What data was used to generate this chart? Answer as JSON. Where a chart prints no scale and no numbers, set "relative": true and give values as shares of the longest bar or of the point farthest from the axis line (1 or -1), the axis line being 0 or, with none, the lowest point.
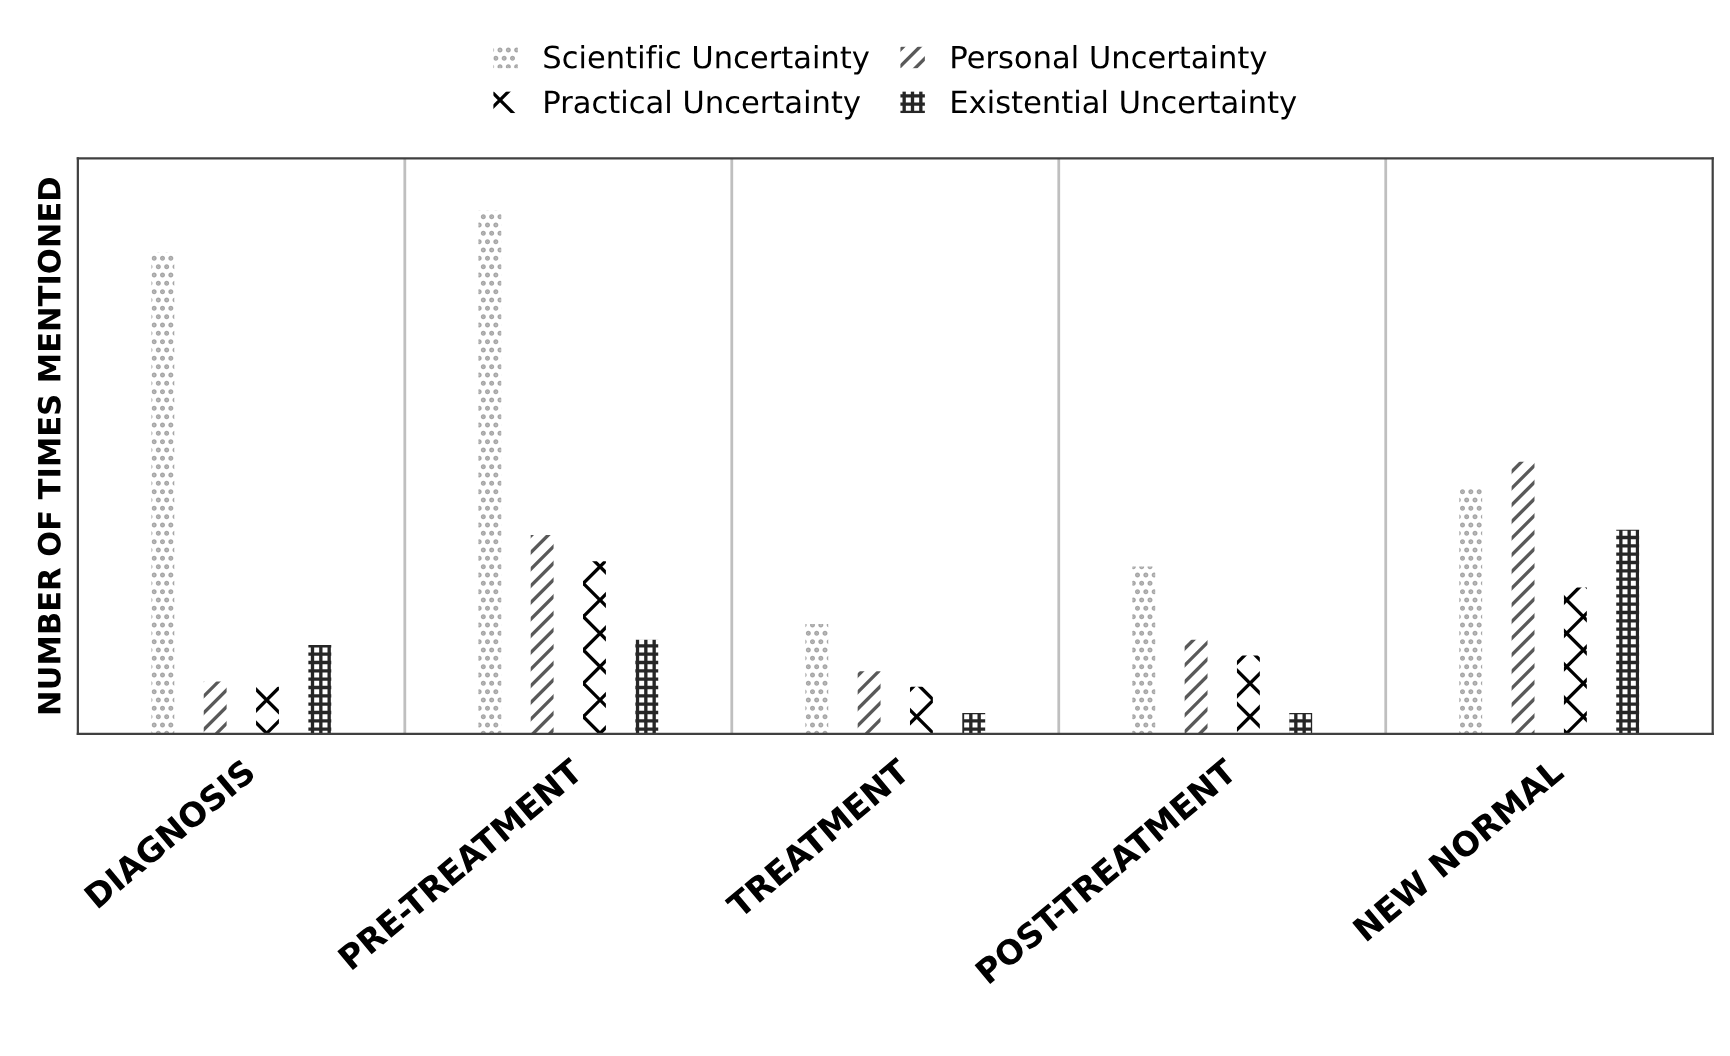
{
  "chart_data": {
    "type": "bar",
    "relative": true,
    "ylabel": "NUMBER OF TIMES MENTIONED",
    "categories": [
      "DIAGNOSIS",
      "PRE-TREATMENT",
      "TREATMENT",
      "POST-TREATMENT",
      "NEW NORMAL"
    ],
    "series": [
      {
        "name": "Scientific Uncertainty",
        "color": "#a6a6a6",
        "values": [
          0.92,
          1.0,
          0.21,
          0.32,
          0.47
        ]
      },
      {
        "name": "Personal Uncertainty",
        "color": "#595959",
        "values": [
          0.1,
          0.38,
          0.12,
          0.18,
          0.52
        ]
      },
      {
        "name": "Practical Uncertainty",
        "color": "#000000",
        "values": [
          0.09,
          0.33,
          0.09,
          0.15,
          0.28
        ]
      },
      {
        "name": "Existential Uncertainty",
        "color": "#262626",
        "values": [
          0.17,
          0.18,
          0.04,
          0.04,
          0.39
        ]
      }
    ],
    "grid": "x",
    "legend": "top"
  }
}
